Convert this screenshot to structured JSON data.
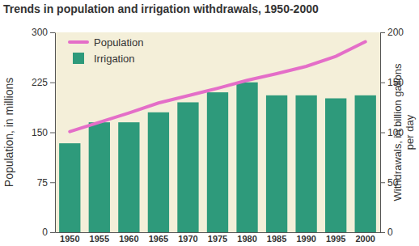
{
  "chart_data": {
    "type": "bar",
    "title": "Trends in population and irrigation withdrawals, 1950-2000",
    "categories": [
      "1950",
      "1955",
      "1960",
      "1965",
      "1970",
      "1975",
      "1980",
      "1985",
      "1990",
      "1995",
      "2000"
    ],
    "series": [
      {
        "name": "Population",
        "type": "line",
        "color": "#e46ec8",
        "axis": "y",
        "values": [
          151,
          165,
          179,
          194,
          205,
          216,
          228,
          238,
          249,
          264,
          286
        ]
      },
      {
        "name": "Irrigation",
        "type": "bar",
        "color": "#2e9a7b",
        "axis": "y2",
        "values": [
          89,
          110,
          110,
          120,
          130,
          140,
          150,
          137,
          137,
          134,
          137
        ]
      }
    ],
    "ylabel": "Population, in millions",
    "y2label": "Withdrawals, in billion gallons per day",
    "ylim": [
      0,
      300
    ],
    "yticks": [
      0,
      75,
      150,
      225,
      300
    ],
    "y2lim": [
      0,
      200
    ],
    "y2ticks": [
      0,
      50,
      100,
      150,
      200
    ],
    "grid": false,
    "legend": "top-left"
  }
}
